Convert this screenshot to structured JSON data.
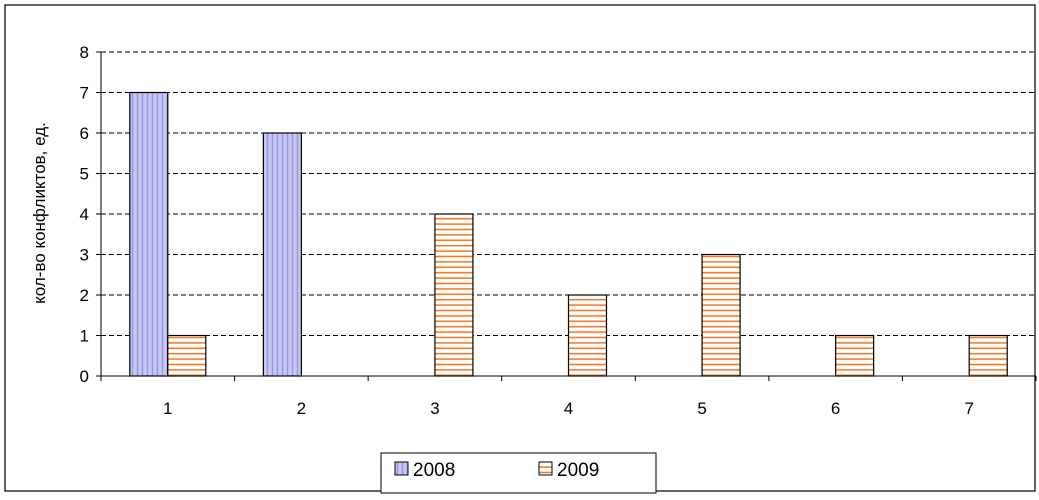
{
  "chart_data": {
    "type": "bar",
    "categories": [
      "1",
      "2",
      "3",
      "4",
      "5",
      "6",
      "7"
    ],
    "series": [
      {
        "name": "2008",
        "values": [
          7,
          6,
          0,
          0,
          0,
          0,
          0
        ],
        "color": "#c8c8f5",
        "stripe_color": "#9a9ae6",
        "pattern": "vertical-lines"
      },
      {
        "name": "2009",
        "values": [
          1,
          0,
          4,
          2,
          3,
          1,
          1
        ],
        "color": "#ffffff",
        "stripe_color": "#f07c28",
        "pattern": "horizontal-lines"
      }
    ],
    "ylabel": "кол-во конфликтов, ед.",
    "xlabel": "",
    "title": "",
    "ylim": [
      0,
      8
    ],
    "yticks": [
      "0",
      "1",
      "2",
      "3",
      "4",
      "5",
      "6",
      "7",
      "8"
    ],
    "grid": "dashed horizontal",
    "legend_position": "bottom-center"
  }
}
